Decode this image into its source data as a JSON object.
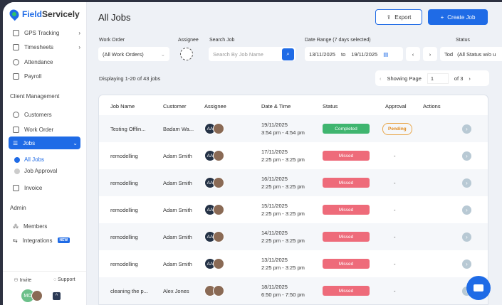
{
  "app": {
    "name_a": "Field",
    "name_b": "Servicely"
  },
  "sidebar": {
    "items_top": [
      {
        "label": "GPS Tracking"
      },
      {
        "label": "Timesheets"
      },
      {
        "label": "Attendance"
      },
      {
        "label": "Payroll"
      }
    ],
    "section_client": "Client Management",
    "items_client": [
      {
        "label": "Customers"
      },
      {
        "label": "Work Order"
      },
      {
        "label": "Jobs"
      }
    ],
    "jobs_sub": [
      {
        "label": "All Jobs"
      },
      {
        "label": "Job Approval"
      }
    ],
    "invoice": "Invoice",
    "section_admin": "Admin",
    "members": "Members",
    "integrations": "Integrations",
    "new_badge": "NEW",
    "invite": "Invite",
    "support": "Support",
    "user_initials": "MO"
  },
  "header": {
    "title": "All Jobs",
    "export": "Export",
    "create": "Create Job"
  },
  "filters": {
    "work_order_label": "Work Order",
    "work_order_value": "(All Work Orders)",
    "assignee_label": "Assignee",
    "search_label": "Search Job",
    "search_placeholder": "Search By Job Name",
    "date_label": "Date Range (7 days selected)",
    "date_from": "13/11/2025",
    "date_to_word": "to",
    "date_to": "19/11/2025",
    "status_label": "Status",
    "today": "Tod",
    "status_value": "(All Status w/o u"
  },
  "pager": {
    "displaying": "Displaying 1-20 of 43 jobs",
    "showing": "Showing Page",
    "page": "1",
    "of": "of 3"
  },
  "table": {
    "headers": [
      "Job Name",
      "Customer",
      "Assignee",
      "Date & Time",
      "Status",
      "Approval",
      "Actions"
    ],
    "rows": [
      {
        "job": "Testing Offlin...",
        "customer": "Badam Wa...",
        "initials": "AA",
        "date": "19/11/2025",
        "time": "3:54 pm - 4:54 pm",
        "status": "Completed",
        "approval": "Pending"
      },
      {
        "job": "remodelling",
        "customer": "Adam Smith",
        "initials": "AA",
        "date": "17/11/2025",
        "time": "2:25 pm - 3:25 pm",
        "status": "Missed",
        "approval": "-"
      },
      {
        "job": "remodelling",
        "customer": "Adam Smith",
        "initials": "AA",
        "date": "16/11/2025",
        "time": "2:25 pm - 3:25 pm",
        "status": "Missed",
        "approval": "-"
      },
      {
        "job": "remodelling",
        "customer": "Adam Smith",
        "initials": "AA",
        "date": "15/11/2025",
        "time": "2:25 pm - 3:25 pm",
        "status": "Missed",
        "approval": "-"
      },
      {
        "job": "remodelling",
        "customer": "Adam Smith",
        "initials": "AA",
        "date": "14/11/2025",
        "time": "2:25 pm - 3:25 pm",
        "status": "Missed",
        "approval": "-"
      },
      {
        "job": "remodelling",
        "customer": "Adam Smith",
        "initials": "AA",
        "date": "13/11/2025",
        "time": "2:25 pm - 3:25 pm",
        "status": "Missed",
        "approval": "-"
      },
      {
        "job": "cleaning the p...",
        "customer": "Alex Jones",
        "initials": "",
        "date": "18/11/2025",
        "time": "6:50 pm - 7:50 pm",
        "status": "Missed",
        "approval": "-"
      }
    ]
  },
  "colors": {
    "accent": "#1f6be6",
    "completed": "#3fb56f",
    "missed": "#ee6b7a",
    "pending": "#e8a64a"
  }
}
